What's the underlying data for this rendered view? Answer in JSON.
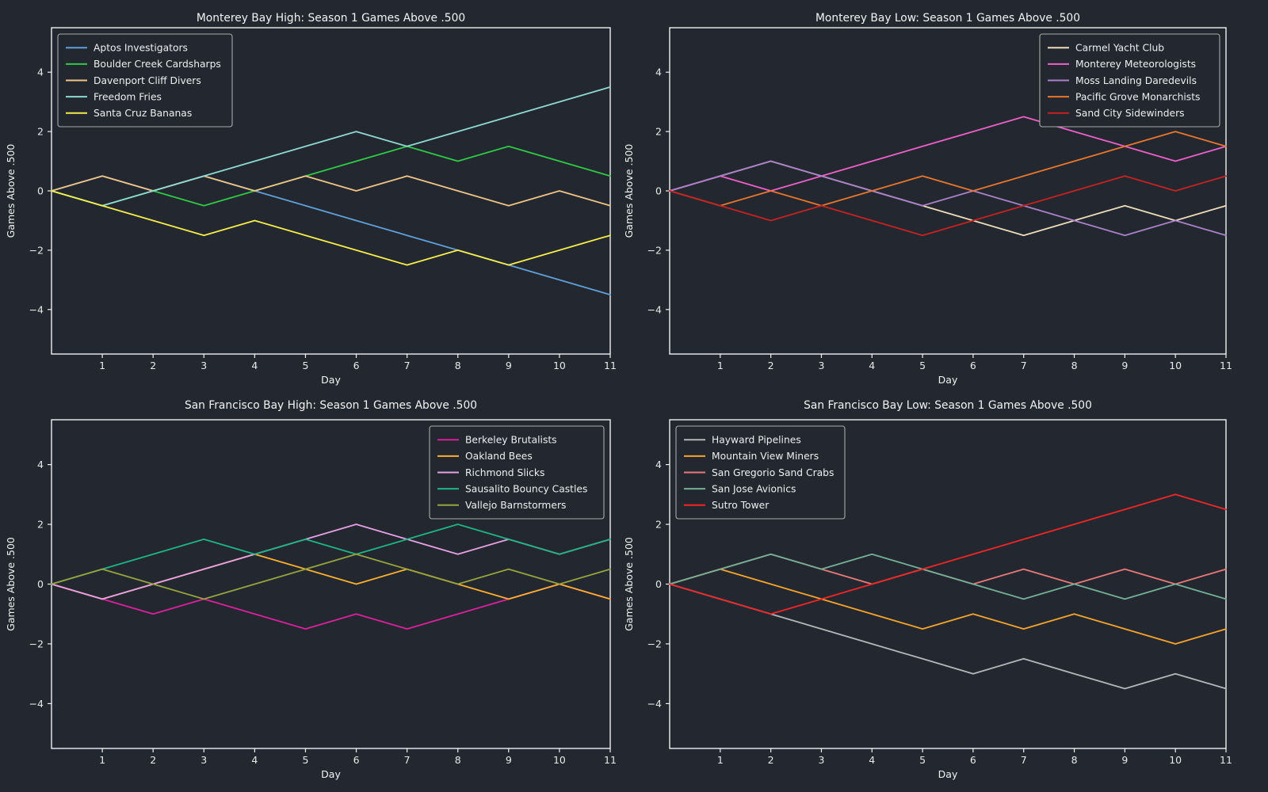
{
  "figure": {
    "background": "#232830",
    "spine_color": "#f0f0f0",
    "text_color": "#f2f2f2",
    "tick_text_color": "#e8e8e8",
    "legend_border_color": "#aaaaaa"
  },
  "chart_data": [
    {
      "type": "line",
      "title": "Monterey Bay High: Season 1 Games Above .500",
      "xlabel": "Day",
      "ylabel": "Games Above .500",
      "x": [
        0,
        1,
        2,
        3,
        4,
        5,
        6,
        7,
        8,
        9,
        10,
        11
      ],
      "xticks": [
        1,
        2,
        3,
        4,
        5,
        6,
        7,
        8,
        9,
        10,
        11
      ],
      "yticks": [
        -4,
        -2,
        0,
        2,
        4
      ],
      "ylim": [
        -5.5,
        5.5
      ],
      "grid": false,
      "legend_position": "upper-left",
      "series": [
        {
          "name": "Aptos Investigators",
          "color": "#5fa0dc",
          "values": [
            0,
            0.5,
            0,
            0.5,
            0,
            -0.5,
            -1,
            -1.5,
            -2,
            -2.5,
            -3,
            -3.5
          ]
        },
        {
          "name": "Boulder Creek Cardsharps",
          "color": "#2fca44",
          "values": [
            0,
            -0.5,
            0,
            -0.5,
            0,
            0.5,
            1,
            1.5,
            1,
            1.5,
            1,
            0.5
          ]
        },
        {
          "name": "Davenport Cliff Divers",
          "color": "#f0c484",
          "values": [
            0,
            0.5,
            0,
            0.5,
            0,
            0.5,
            0,
            0.5,
            0,
            -0.5,
            0,
            -0.5
          ]
        },
        {
          "name": "Freedom Fries",
          "color": "#8fd9d4",
          "values": [
            0,
            -0.5,
            0,
            0.5,
            1,
            1.5,
            2,
            1.5,
            2,
            2.5,
            3,
            3.5
          ]
        },
        {
          "name": "Santa Cruz Bananas",
          "color": "#f5ee4a",
          "values": [
            0,
            -0.5,
            -1,
            -1.5,
            -1,
            -1.5,
            -2,
            -2.5,
            -2,
            -2.5,
            -2,
            -1.5
          ]
        }
      ]
    },
    {
      "type": "line",
      "title": "Monterey Bay Low: Season 1 Games Above .500",
      "xlabel": "Day",
      "ylabel": "Games Above .500",
      "x": [
        0,
        1,
        2,
        3,
        4,
        5,
        6,
        7,
        8,
        9,
        10,
        11
      ],
      "xticks": [
        1,
        2,
        3,
        4,
        5,
        6,
        7,
        8,
        9,
        10,
        11
      ],
      "yticks": [
        -4,
        -2,
        0,
        2,
        4
      ],
      "ylim": [
        -5.5,
        5.5
      ],
      "grid": false,
      "legend_position": "upper-right",
      "series": [
        {
          "name": "Carmel Yacht Club",
          "color": "#ecdcba",
          "values": [
            0,
            0.5,
            1,
            0.5,
            0,
            -0.5,
            -1,
            -1.5,
            -1,
            -0.5,
            -1,
            -0.5
          ]
        },
        {
          "name": "Monterey Meteorologists",
          "color": "#ef5fc8",
          "values": [
            0,
            0.5,
            0,
            0.5,
            1,
            1.5,
            2,
            2.5,
            2,
            1.5,
            1,
            1.5
          ]
        },
        {
          "name": "Moss Landing Daredevils",
          "color": "#aa80c8",
          "values": [
            0,
            0.5,
            1,
            0.5,
            0,
            -0.5,
            0,
            -0.5,
            -1,
            -1.5,
            -1,
            -1.5
          ]
        },
        {
          "name": "Pacific Grove Monarchists",
          "color": "#ea762e",
          "values": [
            0,
            -0.5,
            0,
            -0.5,
            0,
            0.5,
            0,
            0.5,
            1,
            1.5,
            2,
            1.5
          ]
        },
        {
          "name": "Sand City Sidewinders",
          "color": "#c62222",
          "values": [
            0,
            -0.5,
            -1,
            -0.5,
            -1,
            -1.5,
            -1,
            -0.5,
            0,
            0.5,
            0,
            0.5
          ]
        }
      ]
    },
    {
      "type": "line",
      "title": "San Francisco Bay High: Season 1 Games Above .500",
      "xlabel": "Day",
      "ylabel": "Games Above .500",
      "x": [
        0,
        1,
        2,
        3,
        4,
        5,
        6,
        7,
        8,
        9,
        10,
        11
      ],
      "xticks": [
        1,
        2,
        3,
        4,
        5,
        6,
        7,
        8,
        9,
        10,
        11
      ],
      "yticks": [
        -4,
        -2,
        0,
        2,
        4
      ],
      "ylim": [
        -5.5,
        5.5
      ],
      "grid": false,
      "legend_position": "upper-right",
      "series": [
        {
          "name": "Berkeley Brutalists",
          "color": "#dd1f9e",
          "values": [
            0,
            -0.5,
            -1,
            -0.5,
            -1,
            -1.5,
            -1,
            -1.5,
            -1,
            -0.5,
            0,
            -0.5
          ]
        },
        {
          "name": "Oakland Bees",
          "color": "#ffb02e",
          "values": [
            0,
            -0.5,
            0,
            0.5,
            1,
            0.5,
            0,
            0.5,
            0,
            -0.5,
            0,
            -0.5
          ]
        },
        {
          "name": "Richmond Slicks",
          "color": "#e8a0e4",
          "values": [
            0,
            -0.5,
            0,
            0.5,
            1,
            1.5,
            2,
            1.5,
            1,
            1.5,
            1,
            1.5
          ]
        },
        {
          "name": "Sausalito Bouncy Castles",
          "color": "#1db584",
          "values": [
            0,
            0.5,
            1,
            1.5,
            1,
            1.5,
            1,
            1.5,
            2,
            1.5,
            1,
            1.5
          ]
        },
        {
          "name": "Vallejo Barnstormers",
          "color": "#97a33c",
          "values": [
            0,
            0.5,
            0,
            -0.5,
            0,
            0.5,
            1,
            0.5,
            0,
            0.5,
            0,
            0.5
          ]
        }
      ]
    },
    {
      "type": "line",
      "title": "San Francisco Bay Low: Season 1 Games Above .500",
      "xlabel": "Day",
      "ylabel": "Games Above .500",
      "x": [
        0,
        1,
        2,
        3,
        4,
        5,
        6,
        7,
        8,
        9,
        10,
        11
      ],
      "xticks": [
        1,
        2,
        3,
        4,
        5,
        6,
        7,
        8,
        9,
        10,
        11
      ],
      "yticks": [
        -4,
        -2,
        0,
        2,
        4
      ],
      "ylim": [
        -5.5,
        5.5
      ],
      "grid": false,
      "legend_position": "upper-left",
      "series": [
        {
          "name": "Hayward Pipelines",
          "color": "#b6b6b6",
          "values": [
            0,
            -0.5,
            -1,
            -1.5,
            -2,
            -2.5,
            -3,
            -2.5,
            -3,
            -3.5,
            -3,
            -3.5
          ]
        },
        {
          "name": "Mountain View Miners",
          "color": "#f9a42a",
          "values": [
            0,
            0.5,
            0,
            -0.5,
            -1,
            -1.5,
            -1,
            -1.5,
            -1,
            -1.5,
            -2,
            -1.5
          ]
        },
        {
          "name": "San Gregorio Sand Crabs",
          "color": "#ea7878",
          "values": [
            0,
            0.5,
            1,
            0.5,
            0,
            0.5,
            0,
            0.5,
            0,
            0.5,
            0,
            0.5
          ]
        },
        {
          "name": "San Jose Avionics",
          "color": "#74b096",
          "values": [
            0,
            0.5,
            1,
            0.5,
            1,
            0.5,
            0,
            -0.5,
            0,
            -0.5,
            0,
            -0.5
          ]
        },
        {
          "name": "Sutro Tower",
          "color": "#f42525",
          "values": [
            0,
            -0.5,
            -1,
            -0.5,
            0,
            0.5,
            1,
            1.5,
            2,
            2.5,
            3,
            2.5
          ]
        }
      ]
    }
  ]
}
